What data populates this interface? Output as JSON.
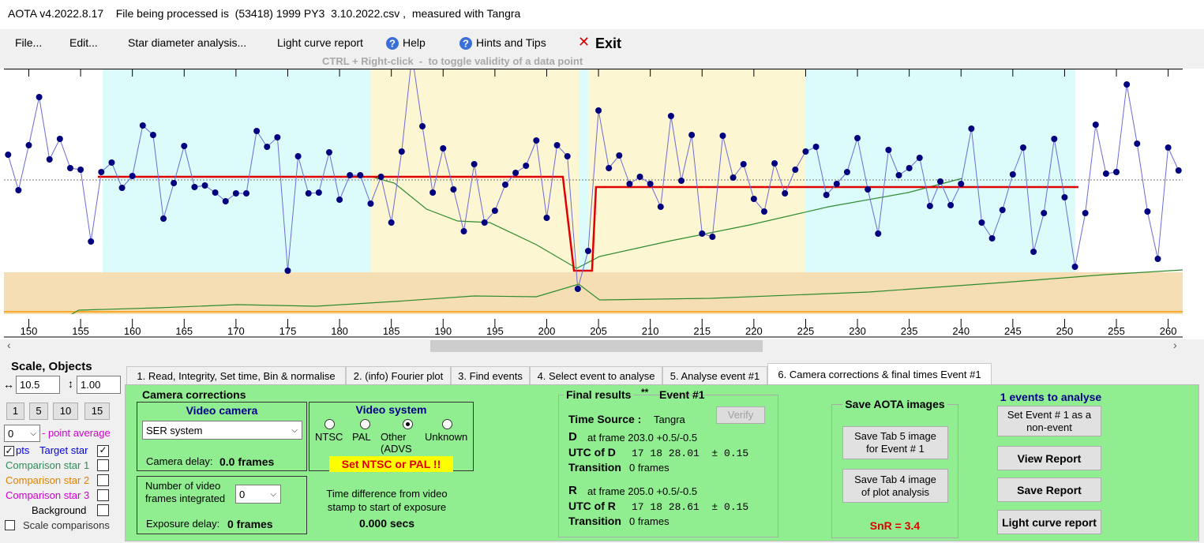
{
  "title_bar": "AOTA v4.2022.8.17    File being processed is  (53418) 1999 PY3  3.10.2022.csv ,  measured with Tangra",
  "menu": [
    "File...",
    "Edit...",
    "Star diameter analysis...",
    "Light curve report",
    "Help",
    "Hints and Tips",
    "Exit"
  ],
  "hint": "CTRL + Right-click  -  to toggle validity of a data point",
  "chart_data": {
    "type": "line",
    "x": [
      148,
      149,
      150,
      151,
      152,
      153,
      154,
      155,
      156,
      157,
      158,
      159,
      160,
      161,
      162,
      163,
      164,
      165,
      166,
      167,
      168,
      169,
      170,
      171,
      172,
      173,
      174,
      175,
      176,
      177,
      178,
      179,
      180,
      181,
      182,
      183,
      184,
      185,
      186,
      187,
      188,
      189,
      190,
      191,
      192,
      193,
      194,
      195,
      196,
      197,
      198,
      199,
      200,
      201,
      202,
      203,
      204,
      205,
      206,
      207,
      208,
      209,
      210,
      211,
      212,
      213,
      214,
      215,
      216,
      217,
      218,
      219,
      220,
      221,
      222,
      223,
      224,
      225,
      226,
      227,
      228,
      229,
      230,
      231,
      232,
      233,
      234,
      235,
      236,
      237,
      238,
      239,
      240,
      241,
      242,
      243,
      244,
      245,
      246,
      247,
      248,
      249,
      250,
      251,
      252,
      253,
      254,
      255,
      256,
      257,
      258,
      259,
      260,
      261
    ],
    "values": [
      231,
      186,
      243,
      304,
      225,
      251,
      214,
      212,
      121,
      209,
      221,
      189,
      204,
      268,
      256,
      150,
      195,
      242,
      190,
      192,
      183,
      172,
      182,
      182,
      261,
      241,
      253,
      84,
      229,
      182,
      183,
      234,
      174,
      205,
      205,
      169,
      203,
      145,
      235,
      357,
      267,
      183,
      239,
      187,
      134,
      219,
      145,
      160,
      193,
      208,
      217,
      249,
      151,
      243,
      229,
      61,
      109,
      287,
      214,
      230,
      194,
      203,
      194,
      165,
      280,
      198,
      256,
      131,
      127,
      255,
      202,
      219,
      175,
      159,
      220,
      182,
      212,
      235,
      241,
      180,
      194,
      209,
      252,
      187,
      131,
      237,
      205,
      214,
      227,
      166,
      197,
      167,
      194,
      264,
      145,
      125,
      161,
      206,
      240,
      108,
      157,
      251,
      177,
      89,
      157,
      269,
      207,
      209,
      320,
      245,
      159,
      99,
      240,
      211
    ],
    "color": "#00007f",
    "line_color": "#6b6bd6",
    "xlim": [
      147.6,
      261.4
    ],
    "ylim": [
      0,
      340
    ],
    "xticks": [
      150,
      155,
      160,
      165,
      170,
      175,
      180,
      185,
      190,
      195,
      200,
      205,
      210,
      215,
      220,
      225,
      230,
      235,
      240,
      245,
      250,
      255,
      260
    ],
    "baseline": 199,
    "model_line": {
      "x": [
        156.67,
        201.56,
        202.63,
        204.38,
        204.76,
        251.33
      ],
      "values": [
        203,
        203,
        84,
        84,
        190,
        190
      ],
      "color": "#e00000"
    },
    "comparison_lines": [
      {
        "x": [
          183.1,
          185.3,
          188.4,
          191.4,
          194.5,
          199.0,
          202.9,
          205.1,
          212.0,
          219.6,
          227.2,
          234.9,
          240.1
        ],
        "values": [
          203,
          195,
          162,
          147,
          145,
          117,
          87,
          102,
          122,
          142,
          165,
          183,
          201
        ],
        "color": "#2e8b2e"
      },
      {
        "x": [
          147.6,
          150.3,
          152.9,
          154.8,
          162.5,
          170.1,
          177.7,
          185.3,
          193.0,
          199.0,
          203.1,
          205.1,
          215.8,
          231.1,
          244.0,
          253.9,
          261.4
        ],
        "values": [
          27,
          21,
          19,
          34,
          37,
          41,
          39,
          45,
          52,
          51,
          67,
          47,
          49,
          57,
          69,
          79,
          85
        ],
        "color": "#2e8b2e"
      }
    ],
    "reference_level": 32,
    "reference_color": "#ff9900"
  },
  "left_panel": {
    "title": "Scale, Objects",
    "h_scale": "10.5",
    "v_scale": "1.00",
    "buttons": [
      "1",
      "5",
      "10",
      "15"
    ],
    "point_average_value": "0",
    "point_average": "- point average",
    "pts": "pts",
    "target_star": "Target star",
    "comparison_1": "Comparison star 1",
    "comparison_2": "Comparison star 2",
    "comparison_3": "Comparison star 3",
    "background": "Background",
    "scale_comparisons": "Scale comparisons"
  },
  "tabs": [
    "1. Read, Integrity, Set time, Bin & normalise",
    "2. (info) Fourier plot",
    "3. Find events",
    "4. Select event to analyse",
    "5. Analyse event #1",
    "6. Camera corrections & final times Event #1"
  ],
  "camera_corrections": {
    "title": "Camera corrections",
    "video_camera": "Video camera",
    "camera_select": "SER system",
    "camera_delay_label": "Camera delay:",
    "camera_delay": "0.0 frames",
    "video_system": "Video system",
    "radios": [
      "NTSC",
      "PAL",
      "Other (ADVS",
      "Unknown"
    ],
    "warning": "Set NTSC or PAL !!",
    "frames_integrated_label": "Number of video frames integrated",
    "frames_integrated": "0",
    "exposure_delay_label": "Exposure delay:",
    "exposure_delay": "0 frames",
    "time_difference_label": "Time difference from video stamp to start of exposure",
    "time_difference": "0.000 secs"
  },
  "final_results": {
    "title": "Final results",
    "stars": "**",
    "event": "Event #1",
    "time_source_label": "Time Source :",
    "time_source": "Tangra",
    "verify": "Verify",
    "d": "D",
    "d_frame": "at frame 203.0 +0.5/-0.5",
    "utc_d_label": "UTC of D",
    "utc_d": "17 18 28.01  ± 0.15",
    "transition_label_d": "Transition",
    "transition_d": "0 frames",
    "r": "R",
    "r_frame": "at frame 205.0 +0.5/-0.5",
    "utc_r_label": "UTC of R",
    "utc_r": "17 18 28.61  ± 0.15",
    "transition_label_r": "Transition",
    "transition_r": "0 frames"
  },
  "save_images": {
    "title": "Save AOTA images",
    "tab5": "Save Tab 5 image for Event # 1",
    "tab4": "Save Tab 4 image of plot analysis",
    "snr": "SnR = 3.4"
  },
  "events_panel": {
    "title": "1 events to analyse",
    "non_event": "Set Event # 1 as a non-event",
    "view_report": "View Report",
    "save_report": "Save Report",
    "light_curve_report": "Light curve report"
  }
}
